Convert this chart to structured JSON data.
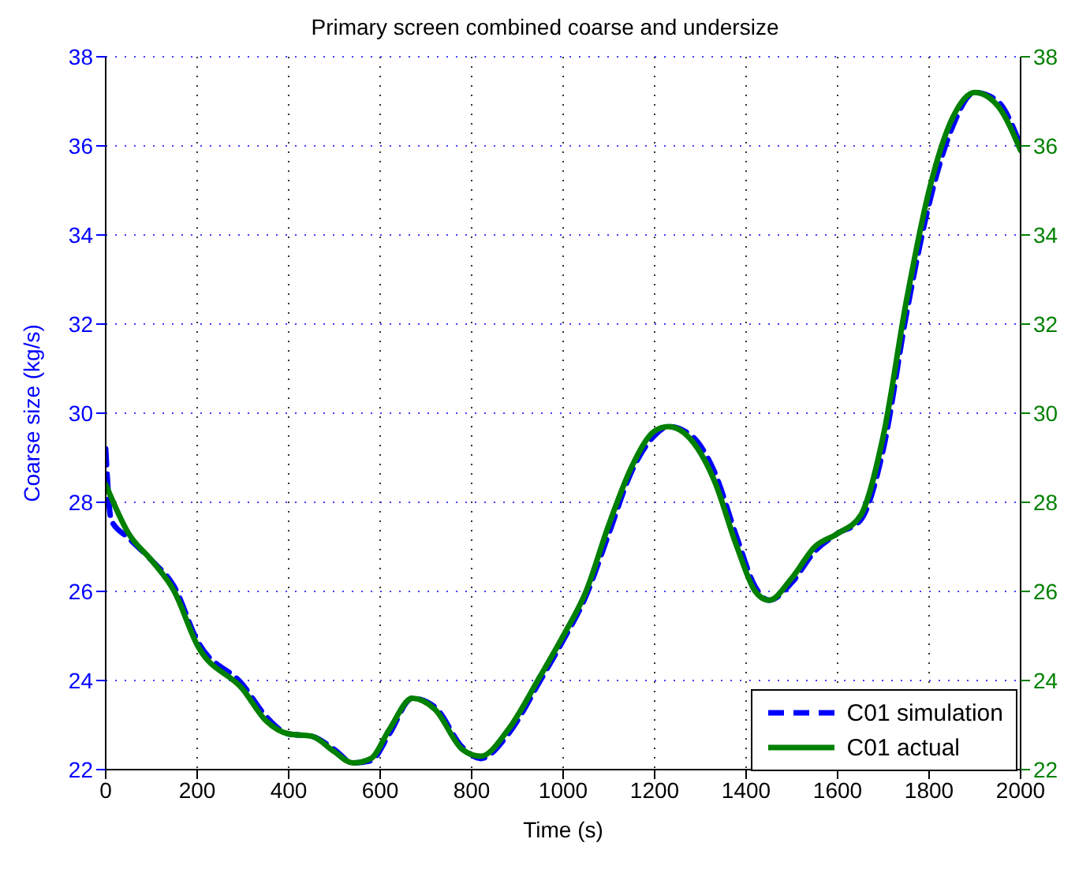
{
  "chart_data": {
    "type": "line",
    "title": "Primary screen combined coarse and undersize",
    "xlabel": "Time (s)",
    "ylabel": "Coarse size (kg/s)",
    "xlim": [
      0,
      2000
    ],
    "xticks": [
      0,
      200,
      400,
      600,
      800,
      1000,
      1200,
      1400,
      1600,
      1800,
      2000
    ],
    "ylim": [
      22,
      38
    ],
    "yticks": [
      22,
      24,
      26,
      28,
      30,
      32,
      34,
      36,
      38
    ],
    "y2lim": [
      22,
      38
    ],
    "y2ticks": [
      22,
      24,
      26,
      28,
      30,
      32,
      34,
      36,
      38
    ],
    "grid": true,
    "legend": "bottom right",
    "series": [
      {
        "name": "C01 simulation",
        "color": "#0000ff",
        "line_style": "dashed",
        "x": [
          0,
          12,
          50,
          100,
          150,
          200,
          300,
          350,
          400,
          450,
          500,
          540,
          580,
          620,
          670,
          720,
          780,
          820,
          880,
          950,
          1000,
          1050,
          1100,
          1150,
          1200,
          1230,
          1280,
          1330,
          1380,
          1420,
          1450,
          1500,
          1550,
          1600,
          1650,
          1700,
          1750,
          1800,
          1850,
          1900,
          1950,
          2000
        ],
        "values": [
          29.2,
          27.6,
          27.2,
          26.7,
          26.1,
          24.9,
          23.9,
          23.2,
          22.8,
          22.75,
          22.45,
          22.15,
          22.2,
          22.8,
          23.6,
          23.4,
          22.5,
          22.25,
          22.8,
          24.0,
          24.9,
          25.9,
          27.3,
          28.7,
          29.5,
          29.7,
          29.5,
          28.7,
          27.2,
          26.1,
          25.8,
          26.2,
          26.9,
          27.3,
          27.6,
          29.2,
          32.2,
          34.7,
          36.4,
          37.2,
          37.0,
          36.0
        ]
      },
      {
        "name": "C01 actual",
        "color": "#008000",
        "line_style": "solid",
        "axis": "y2",
        "x": [
          0,
          50,
          100,
          150,
          200,
          300,
          350,
          400,
          450,
          500,
          540,
          580,
          620,
          670,
          720,
          780,
          820,
          880,
          950,
          1000,
          1050,
          1100,
          1150,
          1200,
          1230,
          1280,
          1330,
          1380,
          1420,
          1450,
          1500,
          1550,
          1600,
          1650,
          1700,
          1750,
          1800,
          1850,
          1900,
          1950,
          2000
        ],
        "values": [
          28.4,
          27.3,
          26.7,
          26.0,
          24.8,
          23.8,
          23.1,
          22.8,
          22.75,
          22.4,
          22.15,
          22.25,
          22.9,
          23.6,
          23.35,
          22.45,
          22.3,
          22.9,
          24.1,
          25.0,
          26.0,
          27.5,
          28.8,
          29.6,
          29.7,
          29.4,
          28.5,
          27.0,
          26.0,
          25.8,
          26.3,
          27.0,
          27.3,
          27.7,
          29.5,
          32.5,
          35.0,
          36.6,
          37.2,
          36.9,
          35.9
        ]
      }
    ]
  }
}
